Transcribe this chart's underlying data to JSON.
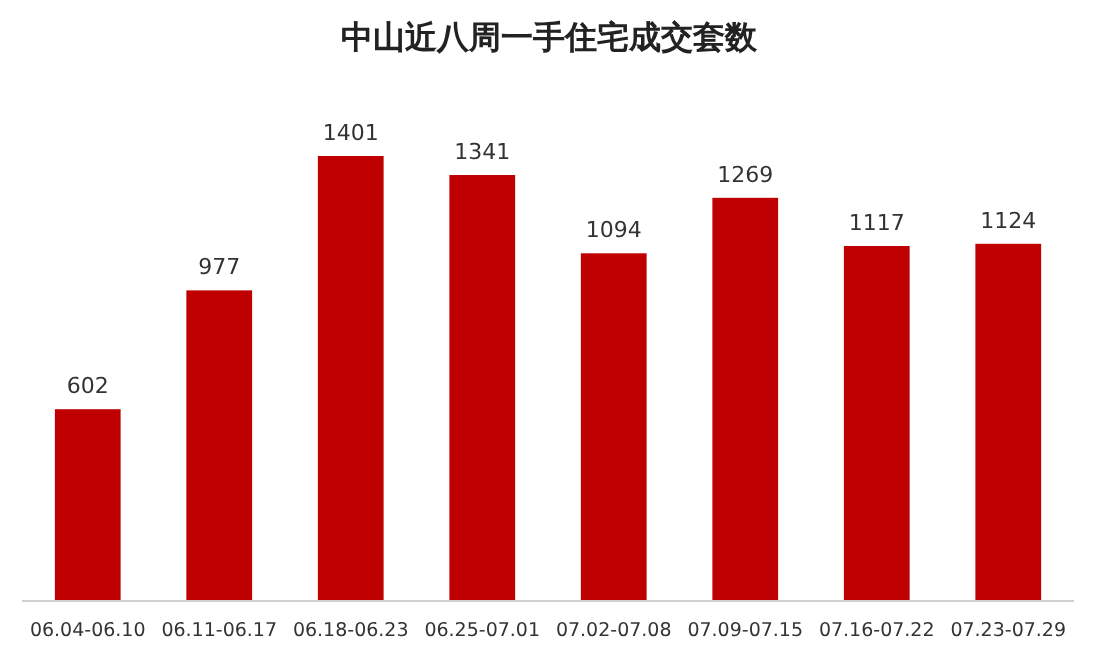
{
  "chart_data": {
    "type": "bar",
    "title": "中山近八周一手住宅成交套数",
    "categories": [
      "06.04-06.10",
      "06.11-06.17",
      "06.18-06.23",
      "06.25-07.01",
      "07.02-07.08",
      "07.09-07.15",
      "07.16-07.22",
      "07.23-07.29"
    ],
    "values": [
      602,
      977,
      1401,
      1341,
      1094,
      1269,
      1117,
      1124
    ],
    "color": "#c00000",
    "data_labels": true
  }
}
